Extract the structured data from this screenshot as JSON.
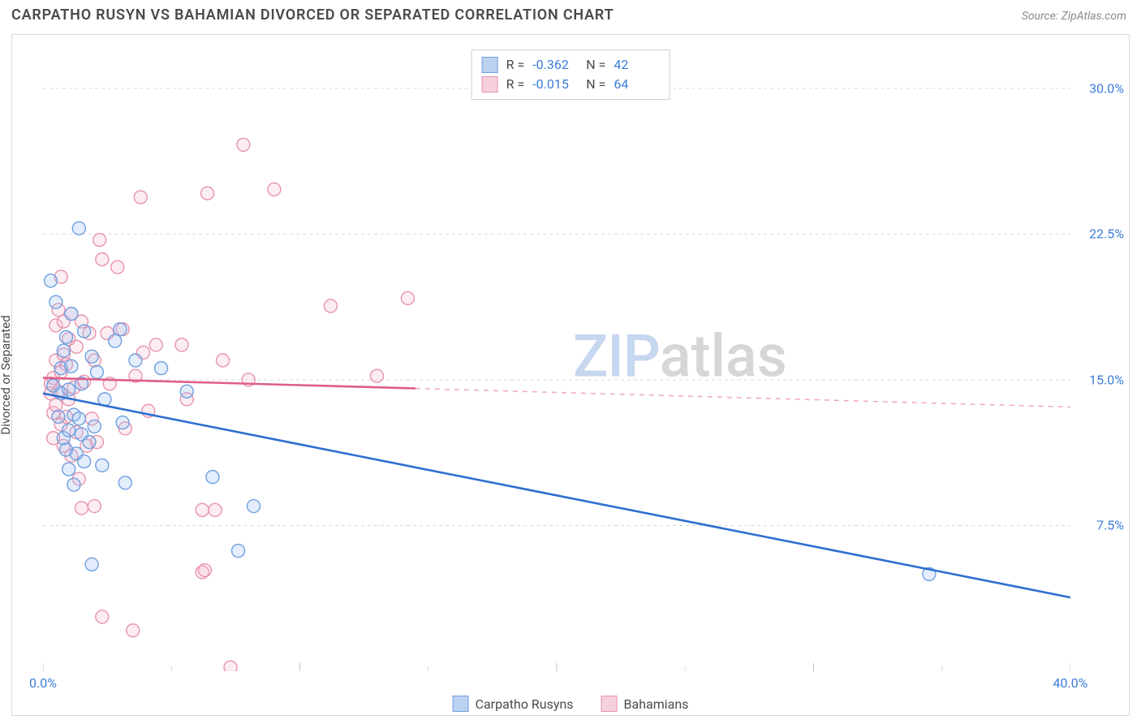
{
  "title": "CARPATHO RUSYN VS BAHAMIAN DIVORCED OR SEPARATED CORRELATION CHART",
  "source_label": "Source: ZipAtlas.com",
  "y_axis_label": "Divorced or Separated",
  "watermark": {
    "part1": "ZIP",
    "part2": "atlas"
  },
  "chart": {
    "type": "scatter",
    "background_color": "#ffffff",
    "border_color": "#d9d9d9",
    "grid_color": "#d9d9d9",
    "grid_dash": "4 4",
    "xlim": [
      0,
      40
    ],
    "ylim": [
      0,
      32
    ],
    "x_ticks": [
      0,
      10,
      20,
      30,
      40
    ],
    "x_tick_labels": [
      "0.0%",
      "",
      "",
      "",
      "40.0%"
    ],
    "y_ticks": [
      7.5,
      15.0,
      22.5,
      30.0
    ],
    "y_tick_labels": [
      "7.5%",
      "15.0%",
      "22.5%",
      "30.0%"
    ],
    "x_minor_tick_step": 5,
    "marker_radius": 8,
    "marker_stroke_width": 1.4,
    "marker_fill_opacity": 0.28,
    "trend_line_width": 2.6,
    "series": [
      {
        "name": "Carpatho Rusyns",
        "color_stroke": "#6ea0e0",
        "color_fill": "#9dbef0",
        "line_color": "#2f6fd0",
        "swatch_fill": "#bcd2f1",
        "swatch_border": "#6ea0e0",
        "R": "-0.362",
        "N": "42",
        "trend": {
          "x1": 0,
          "y1": 14.3,
          "x2": 40,
          "y2": 3.8
        },
        "trend_solid_until_x": 40,
        "points": [
          [
            0.3,
            20.1
          ],
          [
            0.4,
            14.7
          ],
          [
            0.5,
            19.0
          ],
          [
            0.6,
            13.1
          ],
          [
            0.7,
            14.3
          ],
          [
            0.7,
            15.6
          ],
          [
            0.8,
            12.0
          ],
          [
            0.8,
            16.5
          ],
          [
            0.9,
            11.4
          ],
          [
            0.9,
            17.2
          ],
          [
            1.0,
            10.4
          ],
          [
            1.0,
            12.4
          ],
          [
            1.0,
            14.5
          ],
          [
            1.1,
            15.7
          ],
          [
            1.1,
            18.4
          ],
          [
            1.2,
            9.6
          ],
          [
            1.2,
            13.2
          ],
          [
            1.3,
            11.2
          ],
          [
            1.4,
            13.0
          ],
          [
            1.4,
            22.8
          ],
          [
            1.5,
            12.2
          ],
          [
            1.5,
            14.8
          ],
          [
            1.6,
            10.8
          ],
          [
            1.6,
            17.5
          ],
          [
            1.8,
            11.8
          ],
          [
            1.9,
            16.2
          ],
          [
            1.9,
            5.5
          ],
          [
            2.0,
            12.6
          ],
          [
            2.1,
            15.4
          ],
          [
            2.3,
            10.6
          ],
          [
            2.4,
            14.0
          ],
          [
            2.8,
            17.0
          ],
          [
            3.0,
            17.6
          ],
          [
            3.1,
            12.8
          ],
          [
            3.2,
            9.7
          ],
          [
            3.6,
            16.0
          ],
          [
            4.6,
            15.6
          ],
          [
            5.6,
            14.4
          ],
          [
            6.6,
            10.0
          ],
          [
            7.6,
            6.2
          ],
          [
            8.2,
            8.5
          ],
          [
            34.5,
            5.0
          ]
        ]
      },
      {
        "name": "Bahamians",
        "color_stroke": "#e893ad",
        "color_fill": "#f4bfd0",
        "line_color": "#de5f87",
        "swatch_fill": "#f6d0dc",
        "swatch_border": "#e893ad",
        "R": "-0.015",
        "N": "64",
        "trend": {
          "x1": 0,
          "y1": 15.1,
          "x2": 40,
          "y2": 13.6
        },
        "trend_solid_until_x": 14.5,
        "points": [
          [
            0.3,
            14.3
          ],
          [
            0.3,
            14.8
          ],
          [
            0.4,
            12.0
          ],
          [
            0.4,
            13.3
          ],
          [
            0.4,
            15.1
          ],
          [
            0.5,
            13.7
          ],
          [
            0.5,
            16.0
          ],
          [
            0.5,
            17.8
          ],
          [
            0.6,
            14.4
          ],
          [
            0.6,
            18.6
          ],
          [
            0.7,
            12.7
          ],
          [
            0.7,
            15.4
          ],
          [
            0.7,
            20.3
          ],
          [
            0.8,
            11.6
          ],
          [
            0.8,
            16.3
          ],
          [
            0.8,
            18.0
          ],
          [
            0.9,
            13.1
          ],
          [
            0.9,
            15.8
          ],
          [
            1.0,
            14.0
          ],
          [
            1.0,
            17.1
          ],
          [
            1.1,
            11.1
          ],
          [
            1.1,
            18.4
          ],
          [
            1.2,
            14.6
          ],
          [
            1.3,
            12.3
          ],
          [
            1.3,
            16.7
          ],
          [
            1.4,
            9.9
          ],
          [
            1.5,
            8.4
          ],
          [
            1.5,
            18.0
          ],
          [
            1.6,
            14.9
          ],
          [
            1.7,
            11.6
          ],
          [
            1.8,
            17.4
          ],
          [
            1.9,
            13.0
          ],
          [
            2.0,
            8.5
          ],
          [
            2.0,
            16.0
          ],
          [
            2.1,
            11.8
          ],
          [
            2.2,
            22.2
          ],
          [
            2.3,
            2.8
          ],
          [
            2.3,
            21.2
          ],
          [
            2.5,
            17.4
          ],
          [
            2.6,
            14.8
          ],
          [
            2.9,
            20.8
          ],
          [
            3.1,
            17.6
          ],
          [
            3.2,
            12.5
          ],
          [
            3.5,
            2.1
          ],
          [
            3.6,
            15.2
          ],
          [
            3.8,
            24.4
          ],
          [
            3.9,
            16.4
          ],
          [
            4.1,
            13.4
          ],
          [
            4.4,
            16.8
          ],
          [
            5.4,
            16.8
          ],
          [
            5.6,
            14.0
          ],
          [
            6.2,
            8.3
          ],
          [
            6.2,
            5.1
          ],
          [
            6.3,
            5.2
          ],
          [
            6.4,
            24.6
          ],
          [
            6.7,
            8.3
          ],
          [
            7.0,
            16.0
          ],
          [
            7.3,
            0.2
          ],
          [
            7.8,
            27.1
          ],
          [
            8.0,
            15.0
          ],
          [
            9.0,
            24.8
          ],
          [
            11.2,
            18.8
          ],
          [
            13.0,
            15.2
          ],
          [
            14.2,
            19.2
          ]
        ]
      }
    ]
  },
  "legend": [
    {
      "label": "Carpatho Rusyns",
      "fill": "#bcd2f1",
      "border": "#6ea0e0"
    },
    {
      "label": "Bahamians",
      "fill": "#f6d0dc",
      "border": "#e893ad"
    }
  ],
  "stats_labels": {
    "r": "R =",
    "n": "N ="
  }
}
